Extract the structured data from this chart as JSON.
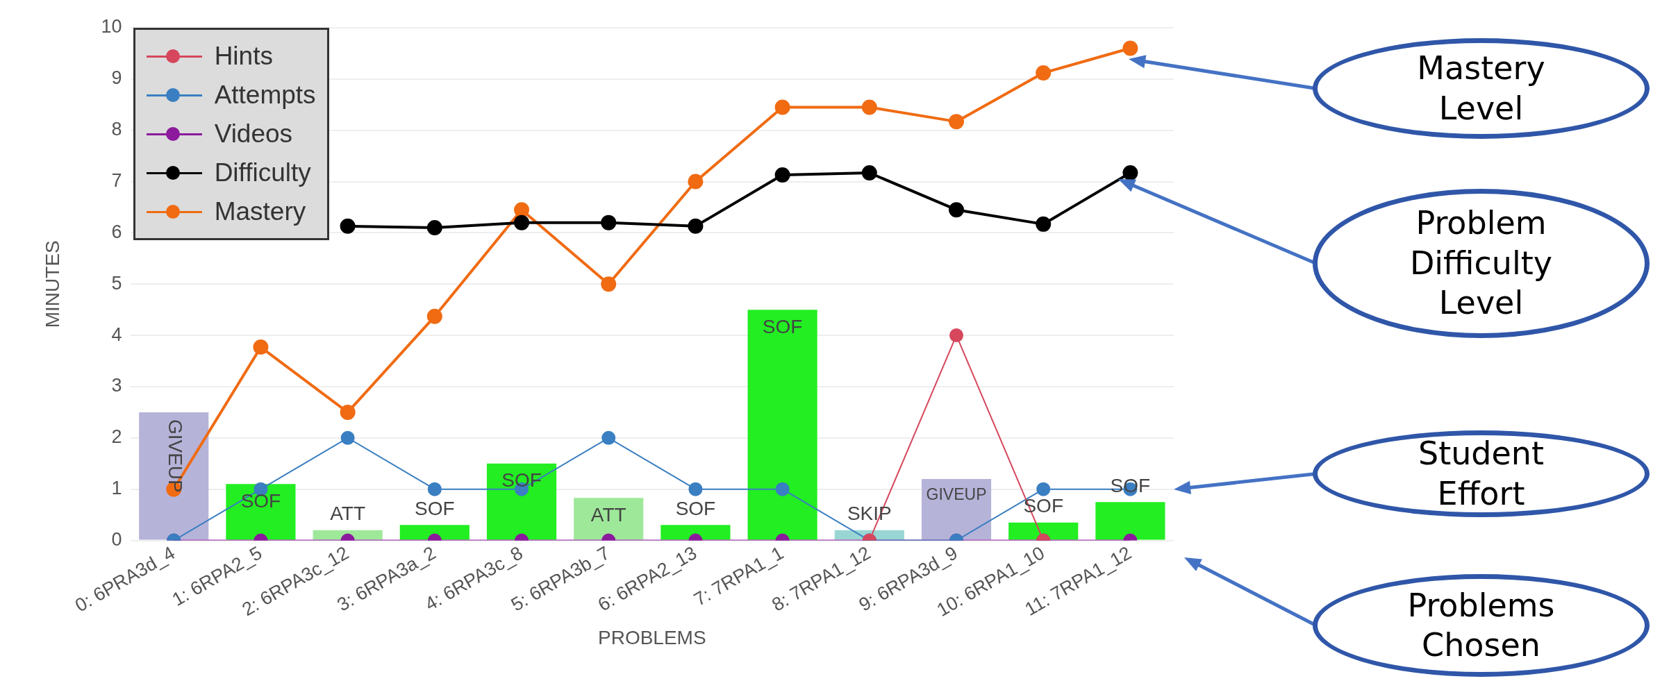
{
  "chart_data": {
    "type": "bar",
    "xlabel": "PROBLEMS",
    "ylabel": "MINUTES",
    "categories": [
      "0: 6PRA3d_4",
      "1: 6RPA2_5",
      "2: 6RPA3c_12",
      "3: 6RPA3a_2",
      "4: 6RPA3c_8",
      "5: 6RPA3b_7",
      "6: 6RPA2_13",
      "7: 7RPA1_1",
      "8: 7RPA1_12",
      "9: 6RPA3d_9",
      "10: 6RPA1_10",
      "11: 7RPA1_12"
    ],
    "series": [
      {
        "values": [
          2.5,
          1.1,
          0.2,
          0.3,
          1.5,
          0.83,
          0.3,
          4.5,
          0.2,
          1.2,
          0.35,
          0.75
        ],
        "colors": [
          "#b6b3d9",
          "#22ee22",
          "#9ee89a",
          "#22ee22",
          "#22ee22",
          "#9ee89a",
          "#22ee22",
          "#22ee22",
          "#99d6d3",
          "#b6b3d9",
          "#22ee22",
          "#22ee22"
        ],
        "value_labels": [
          "GIVEUP",
          "SOF",
          "ATT",
          "SOF",
          "SOF",
          "ATT",
          "SOF",
          "SOF",
          "SKIP",
          "GIVEUP",
          "SOF",
          "SOF"
        ]
      },
      {
        "type": "line",
        "name": "Hints",
        "color": "#d6475d",
        "values": [
          null,
          null,
          null,
          null,
          null,
          null,
          null,
          null,
          0,
          4,
          0,
          null
        ]
      },
      {
        "type": "line",
        "name": "Attempts",
        "color": "#3a7fc1",
        "values": [
          0,
          1,
          2,
          1,
          1,
          2,
          1,
          1,
          0,
          0,
          1,
          1
        ]
      },
      {
        "type": "line",
        "name": "Videos",
        "color": "#8c1a9c",
        "values": [
          0,
          0,
          0,
          0,
          0,
          0,
          0,
          0,
          0,
          0,
          0,
          0
        ]
      },
      {
        "type": "line",
        "name": "Difficulty",
        "color": "#000000",
        "values": [
          null,
          null,
          6.13,
          6.1,
          6.2,
          6.2,
          6.13,
          7.13,
          7.17,
          6.45,
          6.17,
          7.17
        ]
      },
      {
        "type": "line",
        "name": "Mastery",
        "color": "#f06b12",
        "values": [
          1,
          3.77,
          2.5,
          4.37,
          6.45,
          5,
          7,
          8.45,
          8.45,
          8.17,
          9.12,
          9.6
        ]
      }
    ],
    "ylim": [
      0,
      10
    ],
    "yticks": [
      0,
      1,
      2,
      3,
      4,
      5,
      6,
      7,
      8,
      9,
      10
    ],
    "grid": "y",
    "legend": "top left",
    "marker": "circle",
    "annotations": [
      "Mastery Level",
      "Problem Difficulty Level",
      "Student Effort",
      "Problems Chosen"
    ]
  }
}
